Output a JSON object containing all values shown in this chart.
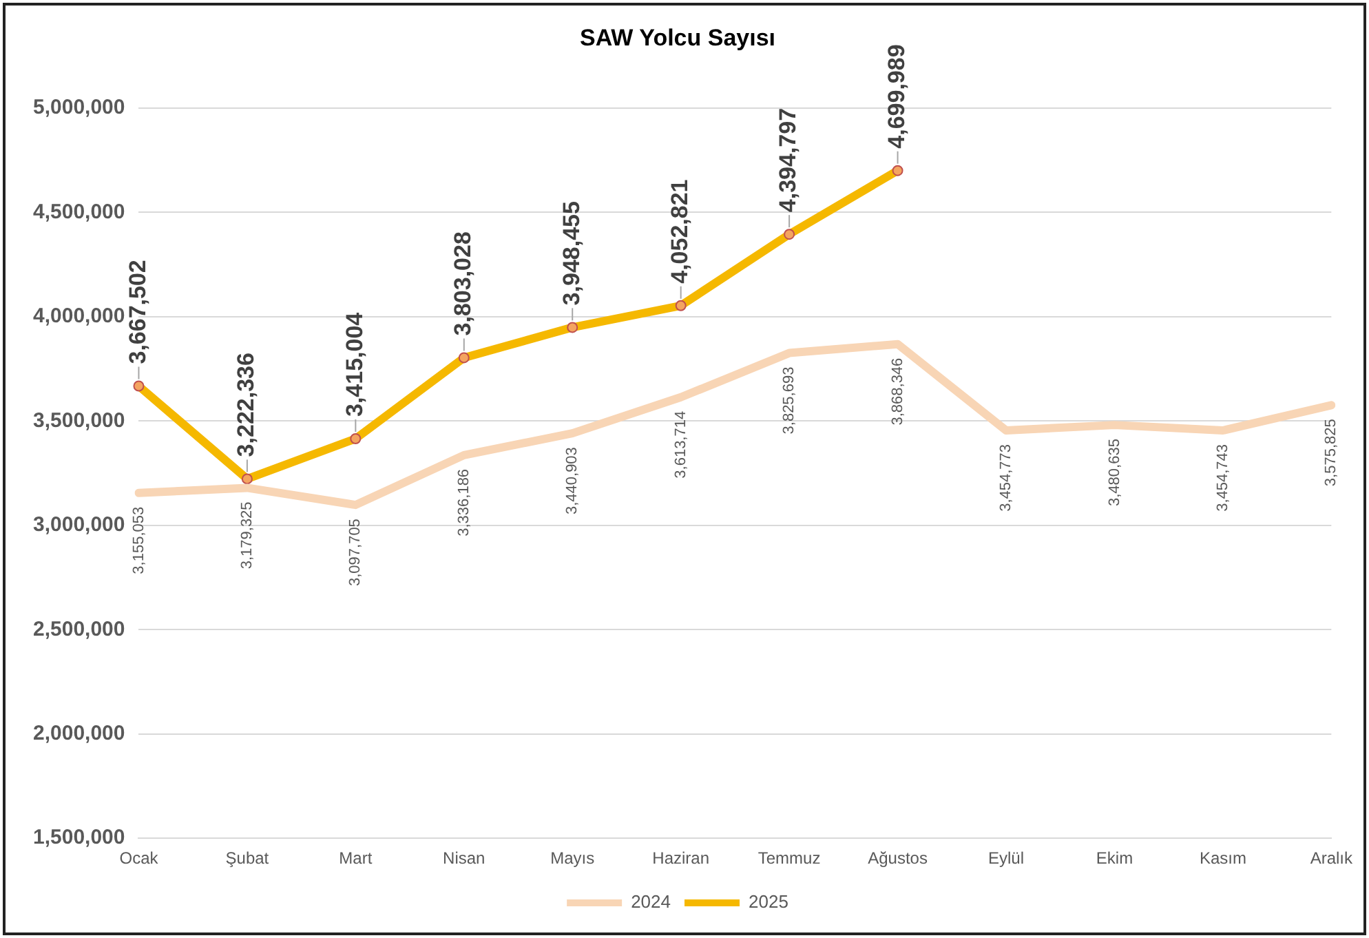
{
  "chart_data": {
    "type": "line",
    "title": "SAW Yolcu Sayısı",
    "categories": [
      "Ocak",
      "Şubat",
      "Mart",
      "Nisan",
      "Mayıs",
      "Haziran",
      "Temmuz",
      "Ağustos",
      "Eylül",
      "Ekim",
      "Kasım",
      "Aralık"
    ],
    "series": [
      {
        "name": "2024",
        "color": "#f8d5b5",
        "marker": "none",
        "values": [
          3155053,
          3179325,
          3097705,
          3336186,
          3440903,
          3613714,
          3825693,
          3868346,
          3454773,
          3480635,
          3454743,
          3575825
        ],
        "value_labels": [
          "3,155,053",
          "3,179,325",
          "3,097,705",
          "3,336,186",
          "3,440,903",
          "3,613,714",
          "3,825,693",
          "3,868,346",
          "3,454,773",
          "3,480,635",
          "3,454,743",
          "3,575,825"
        ]
      },
      {
        "name": "2025",
        "color": "#f5b800",
        "marker": "circle",
        "values": [
          3667502,
          3222336,
          3415004,
          3803028,
          3948455,
          4052821,
          4394797,
          4699989,
          null,
          null,
          null,
          null
        ],
        "value_labels": [
          "3,667,502",
          "3,222,336",
          "3,415,004",
          "3,803,028",
          "3,948,455",
          "4,052,821",
          "4,394,797",
          "4,699,989",
          null,
          null,
          null,
          null
        ]
      }
    ],
    "ylim": [
      1500000,
      5000000
    ],
    "yticks": [
      {
        "value": 1500000,
        "label": "1,500,000"
      },
      {
        "value": 2000000,
        "label": "2,000,000"
      },
      {
        "value": 2500000,
        "label": "2,500,000"
      },
      {
        "value": 3000000,
        "label": "3,000,000"
      },
      {
        "value": 3500000,
        "label": "3,500,000"
      },
      {
        "value": 4000000,
        "label": "4,000,000"
      },
      {
        "value": 4500000,
        "label": "4,500,000"
      },
      {
        "value": 5000000,
        "label": "5,000,000"
      }
    ],
    "grid": "y",
    "legend": "bottom"
  }
}
